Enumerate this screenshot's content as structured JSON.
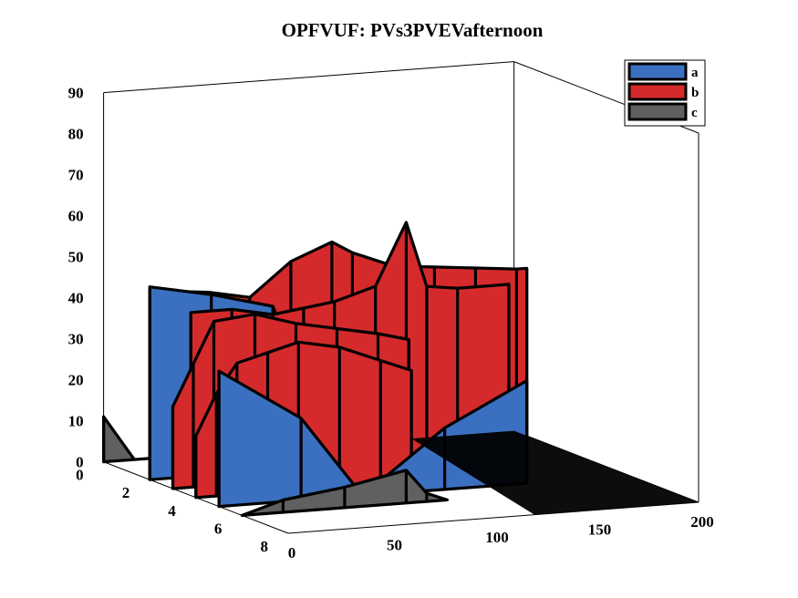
{
  "chart_data": {
    "type": "ribbon3d",
    "title": "OPFVUF: PVs3PVEVafternoon",
    "xlabel": "",
    "ylabel": "",
    "zlabel": "",
    "xlim": [
      0,
      200
    ],
    "ylim": [
      0,
      8
    ],
    "zlim": [
      0,
      90
    ],
    "xticks": [
      "0",
      "50",
      "100",
      "150",
      "200"
    ],
    "yticks": [
      "0",
      "2",
      "4",
      "6",
      "8"
    ],
    "zticks": [
      "0",
      "10",
      "20",
      "30",
      "40",
      "50",
      "60",
      "70",
      "80",
      "90"
    ],
    "legend": {
      "position": "top-right"
    },
    "series": [
      {
        "name": "a",
        "color": "#3b6fbf",
        "ribbons": [
          {
            "row": 2,
            "points": [
              [
                0,
                47
              ],
              [
                30,
                44
              ],
              [
                60,
                40
              ],
              [
                90,
                0
              ],
              [
                120,
                32
              ],
              [
                150,
                30
              ]
            ]
          },
          {
            "row": 5,
            "points": [
              [
                0,
                33
              ],
              [
                40,
                20
              ],
              [
                70,
                0
              ],
              [
                110,
                15
              ],
              [
                150,
                25
              ]
            ]
          }
        ]
      },
      {
        "name": "b",
        "color": "#d42a2c",
        "ribbons": [
          {
            "row": 1,
            "points": [
              [
                20,
                43
              ],
              [
                40,
                42
              ],
              [
                60,
                40
              ],
              [
                80,
                48
              ],
              [
                100,
                52
              ],
              [
                110,
                49
              ],
              [
                130,
                45
              ],
              [
                150,
                44
              ],
              [
                170,
                43
              ],
              [
                190,
                42
              ],
              [
                195,
                42
              ]
            ]
          },
          {
            "row": 2,
            "points": [
              [
                20,
                40
              ],
              [
                40,
                40
              ],
              [
                60,
                38
              ],
              [
                75,
                39
              ],
              [
                90,
                40
              ],
              [
                110,
                43
              ],
              [
                125,
                58
              ],
              [
                135,
                42
              ],
              [
                150,
                41
              ],
              [
                175,
                41
              ]
            ]
          },
          {
            "row": 3,
            "points": [
              [
                0,
                20
              ],
              [
                10,
                30
              ],
              [
                20,
                40
              ],
              [
                40,
                41
              ],
              [
                60,
                38
              ],
              [
                80,
                36
              ],
              [
                100,
                34
              ],
              [
                115,
                32
              ]
            ]
          },
          {
            "row": 4,
            "points": [
              [
                0,
                15
              ],
              [
                10,
                25
              ],
              [
                20,
                32
              ],
              [
                35,
                34
              ],
              [
                50,
                36
              ],
              [
                70,
                34
              ],
              [
                90,
                30
              ],
              [
                105,
                27
              ]
            ]
          }
        ]
      },
      {
        "name": "c",
        "color": "#606060",
        "ribbons": [
          {
            "row": 0,
            "points": [
              [
                0,
                11
              ],
              [
                15,
                0
              ],
              [
                60,
                0
              ],
              [
                120,
                0
              ],
              [
                150,
                25
              ],
              [
                160,
                30
              ],
              [
                175,
                0
              ],
              [
                200,
                0
              ]
            ]
          },
          {
            "row": 6,
            "points": [
              [
                0,
                0
              ],
              [
                20,
                3
              ],
              [
                50,
                5
              ],
              [
                80,
                8
              ],
              [
                90,
                2
              ],
              [
                100,
                0
              ]
            ]
          }
        ]
      }
    ]
  }
}
